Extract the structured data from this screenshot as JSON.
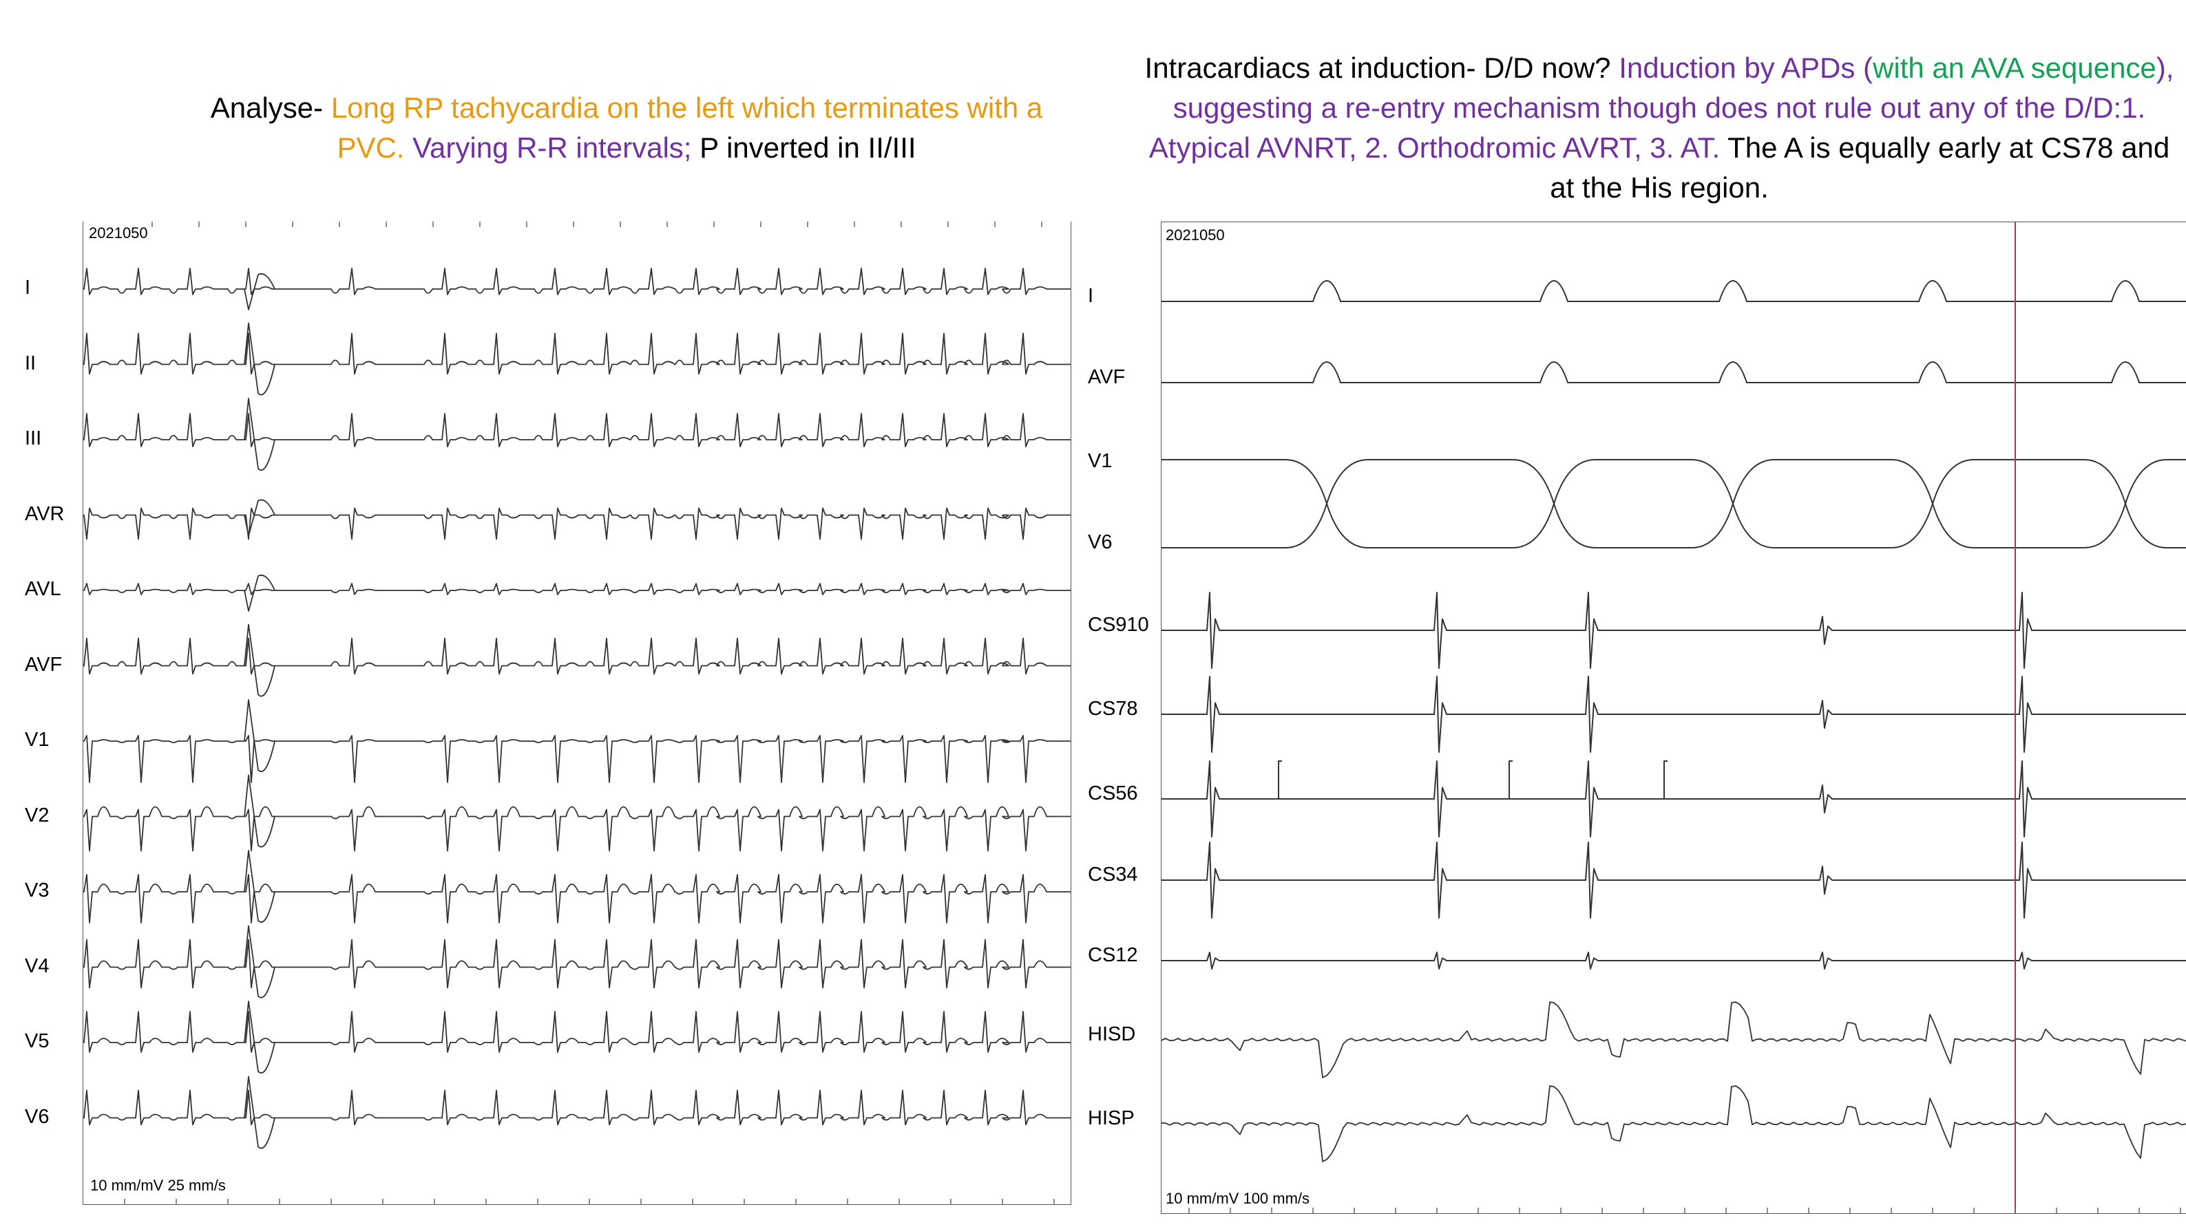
{
  "captions": {
    "left": [
      {
        "text": "Analyse- ",
        "color": "#000000"
      },
      {
        "text": "Long RP tachycardia on the left which terminates with a PVC.  ",
        "color": "#E69A12"
      },
      {
        "text": "Varying R-R intervals; ",
        "color": "#7030A0"
      },
      {
        "text": "P inverted in II/III",
        "color": "#000000"
      }
    ],
    "right": [
      {
        "text": "Intracardiacs at induction- D/D now? ",
        "color": "#000000"
      },
      {
        "text": "Induction by APDs (",
        "color": "#7030A0"
      },
      {
        "text": "with an AVA sequence",
        "color": "#14A155"
      },
      {
        "text": "), suggesting a re-entry mechanism though does not rule out any of the D/D:1. Atypical AVNRT, 2. Orthodromic AVRT, 3. AT. ",
        "color": "#7030A0"
      },
      {
        "text": "The A is equally early at CS78 and at  the His region.",
        "color": "#000000"
      }
    ]
  },
  "surface_ecg": {
    "id": "2021050",
    "scale": "10 mm/mV   25 mm/s",
    "leads": [
      "I",
      "II",
      "III",
      "AVR",
      "AVL",
      "AVF",
      "V1",
      "V2",
      "V3",
      "V4",
      "V5",
      "V6"
    ]
  },
  "intracardiac": {
    "id": "2021050",
    "scale": "10 mm/mV   100 mm/s",
    "channels": [
      "I",
      "AVF",
      "V1",
      "V6",
      "CS910",
      "CS78",
      "CS56",
      "CS34",
      "CS12",
      "HISD",
      "HISP"
    ]
  },
  "colors": {
    "trace": "#333333",
    "marker": "#B03050",
    "frame": "#555555"
  }
}
